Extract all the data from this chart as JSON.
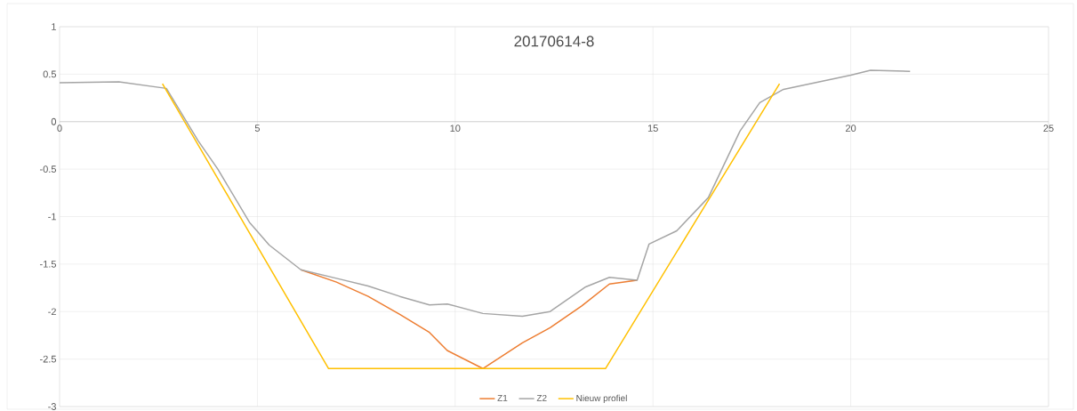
{
  "chart_data": {
    "type": "line",
    "title": "20170614-8",
    "xlim": [
      0,
      25
    ],
    "xticks": [
      0,
      5,
      10,
      15,
      20,
      25
    ],
    "ylim": [
      -3,
      1
    ],
    "yticks": [
      -3,
      -2.5,
      -2,
      -1.5,
      -1,
      -0.5,
      0,
      0.5,
      1
    ],
    "grid": true,
    "legend": "bottom",
    "marker": "none",
    "series": [
      {
        "name": "Z1",
        "color": "#ed7d31",
        "x": [
          6.1,
          7.0,
          7.8,
          8.6,
          9.35,
          9.8,
          10.7,
          11.7,
          12.4,
          13.2,
          13.9,
          14.6
        ],
        "values": [
          -1.56,
          -1.69,
          -1.84,
          -2.03,
          -2.22,
          -2.41,
          -2.6,
          -2.33,
          -2.17,
          -1.94,
          -1.71,
          -1.67
        ]
      },
      {
        "name": "Z2",
        "color": "#a5a5a5",
        "x": [
          0,
          1.5,
          2.7,
          3.5,
          4.0,
          4.8,
          5.3,
          6.1,
          7.0,
          7.8,
          8.6,
          9.35,
          9.8,
          10.7,
          11.7,
          12.4,
          13.3,
          13.9,
          14.6,
          14.9,
          15.6,
          16.4,
          17.2,
          17.7,
          18.3,
          20.0,
          20.5,
          21.5
        ],
        "values": [
          0.41,
          0.42,
          0.35,
          -0.2,
          -0.5,
          -1.06,
          -1.3,
          -1.56,
          -1.65,
          -1.73,
          -1.84,
          -1.93,
          -1.92,
          -2.02,
          -2.05,
          -2.0,
          -1.74,
          -1.64,
          -1.67,
          -1.29,
          -1.15,
          -0.8,
          -0.1,
          0.2,
          0.34,
          0.49,
          0.54,
          0.53
        ]
      },
      {
        "name": "Nieuw profiel",
        "color": "#ffc000",
        "x": [
          2.6,
          6.8,
          13.8,
          18.2
        ],
        "values": [
          0.4,
          -2.6,
          -2.6,
          0.4
        ]
      }
    ]
  }
}
